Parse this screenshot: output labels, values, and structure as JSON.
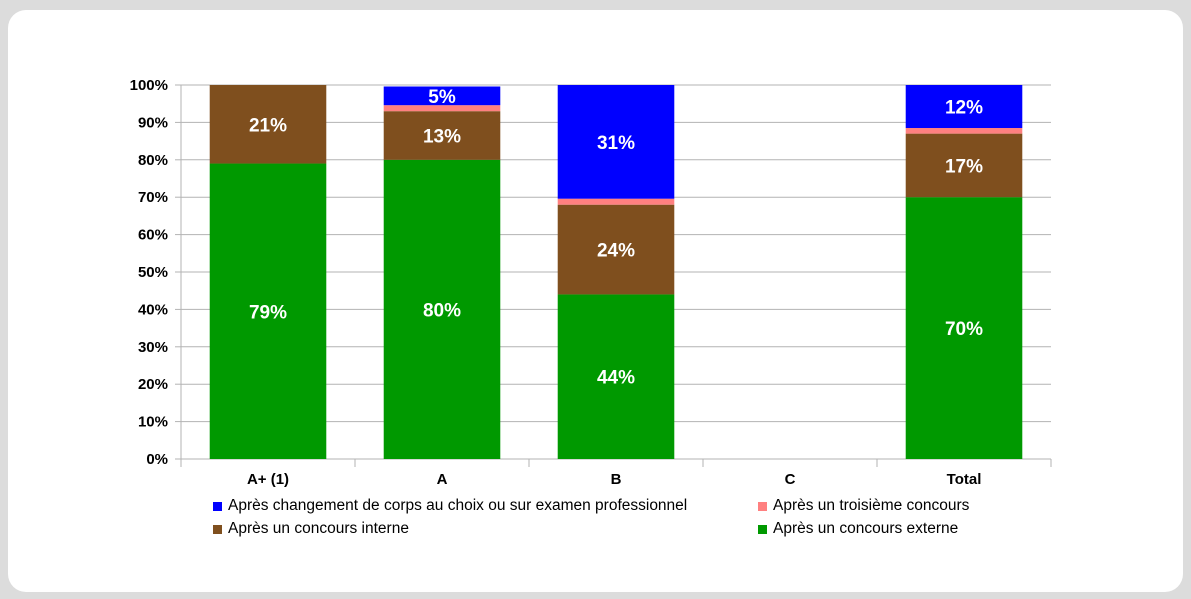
{
  "chart_data": {
    "type": "bar",
    "stacked": true,
    "categories": [
      "A+ (1)",
      "A",
      "B",
      "C",
      "Total"
    ],
    "series": [
      {
        "name": "Après un concours externe",
        "color": "#009900",
        "values": [
          79,
          80,
          44,
          null,
          70
        ],
        "labels": [
          "79%",
          "80%",
          "44%",
          "",
          "70%"
        ]
      },
      {
        "name": "Après un concours interne",
        "color": "#7f4f1e",
        "values": [
          21,
          13,
          24,
          null,
          17
        ],
        "labels": [
          "21%",
          "13%",
          "24%",
          "",
          "17%"
        ]
      },
      {
        "name": "Après un troisième concours",
        "color": "#ff8080",
        "values": [
          0,
          1.6,
          1.6,
          null,
          1.5
        ],
        "labels": [
          "",
          "",
          "",
          "",
          ""
        ]
      },
      {
        "name": "Après changement de corps au choix ou sur examen professionnel",
        "color": "#0000ff",
        "values": [
          0,
          5,
          31,
          null,
          12
        ],
        "labels": [
          "",
          "5%",
          "31%",
          "",
          "12%"
        ]
      }
    ],
    "ylim": [
      0,
      100
    ],
    "yticks": [
      "0%",
      "10%",
      "20%",
      "30%",
      "40%",
      "50%",
      "60%",
      "70%",
      "80%",
      "90%",
      "100%"
    ],
    "grid": true,
    "legend_position": "bottom"
  },
  "legend": [
    {
      "label": "Après changement de corps au choix ou sur examen professionnel",
      "color": "#0000ff"
    },
    {
      "label": "Après un troisième concours",
      "color": "#ff8080"
    },
    {
      "label": "Après un concours interne",
      "color": "#7f4f1e"
    },
    {
      "label": "Après un concours externe",
      "color": "#009900"
    }
  ]
}
